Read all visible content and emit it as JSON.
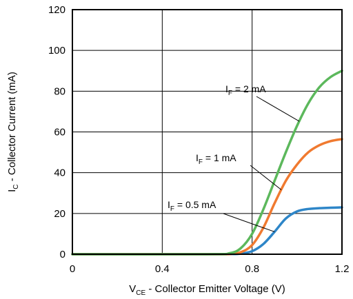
{
  "chart_data": {
    "type": "line",
    "x_axis": {
      "label_main": "V",
      "label_sub": "CE",
      "label_rest": " - Collector Emitter Voltage (V)",
      "range": [
        0,
        1.2
      ],
      "ticks": [
        0,
        0.4,
        0.8,
        1.2
      ],
      "tick_labels": [
        "0",
        "0.4",
        "0.8",
        "1.2"
      ]
    },
    "y_axis": {
      "label_main": "I",
      "label_sub": "C",
      "label_rest": " - Collector Current (mA)",
      "range": [
        0,
        120
      ],
      "ticks": [
        0,
        20,
        40,
        60,
        80,
        100,
        120
      ],
      "tick_labels": [
        "0",
        "20",
        "40",
        "60",
        "80",
        "100",
        "120"
      ]
    },
    "grid": true,
    "legend": "none (inline annotations)",
    "series": [
      {
        "name": "IF = 0.5 mA",
        "label_main": "I",
        "label_sub": "F",
        "label_rest": " = 0.5 mA",
        "color": "#2e86c8",
        "points": [
          [
            0,
            0
          ],
          [
            0.6,
            0
          ],
          [
            0.7,
            0.05
          ],
          [
            0.75,
            0.3
          ],
          [
            0.8,
            1.5
          ],
          [
            0.85,
            5
          ],
          [
            0.9,
            11
          ],
          [
            0.95,
            17.5
          ],
          [
            1.0,
            21
          ],
          [
            1.05,
            22.2
          ],
          [
            1.1,
            22.6
          ],
          [
            1.15,
            22.8
          ],
          [
            1.2,
            23
          ]
        ],
        "annotation_x": 0.9
      },
      {
        "name": "IF = 1 mA",
        "label_main": "I",
        "label_sub": "F",
        "label_rest": " = 1 mA",
        "color": "#f07a30",
        "points": [
          [
            0,
            0
          ],
          [
            0.6,
            0
          ],
          [
            0.7,
            0.1
          ],
          [
            0.75,
            1
          ],
          [
            0.8,
            4.5
          ],
          [
            0.85,
            13
          ],
          [
            0.9,
            25
          ],
          [
            0.95,
            36
          ],
          [
            1.0,
            44
          ],
          [
            1.05,
            50
          ],
          [
            1.1,
            53.5
          ],
          [
            1.15,
            55.5
          ],
          [
            1.2,
            56.5
          ]
        ],
        "annotation_x": 0.93
      },
      {
        "name": "IF = 2 mA",
        "label_main": "I",
        "label_sub": "F",
        "label_rest": " = 2 mA",
        "color": "#5cb85c",
        "points": [
          [
            0,
            0
          ],
          [
            0.6,
            0
          ],
          [
            0.7,
            0.5
          ],
          [
            0.75,
            3
          ],
          [
            0.8,
            10
          ],
          [
            0.85,
            22
          ],
          [
            0.9,
            36
          ],
          [
            0.95,
            50
          ],
          [
            1.0,
            63
          ],
          [
            1.05,
            74
          ],
          [
            1.1,
            82
          ],
          [
            1.15,
            87
          ],
          [
            1.2,
            90
          ]
        ],
        "annotation_x": 1.01
      }
    ]
  }
}
